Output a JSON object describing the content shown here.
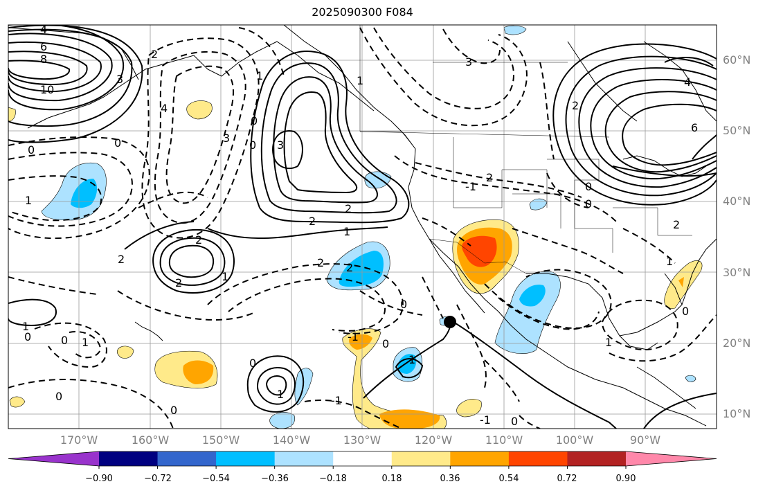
{
  "title": "2025090300 F084",
  "lat_labels": [
    "60°N",
    "50°N",
    "40°N",
    "30°N",
    "20°N",
    "10°N"
  ],
  "lon_labels": [
    "170°W",
    "160°W",
    "150°W",
    "140°W",
    "130°W",
    "120°W",
    "110°W",
    "100°W",
    "90°W"
  ],
  "colorbar": {
    "colors": [
      "#9933cc",
      "#000080",
      "#3366cc",
      "#00bfff",
      "#ade2ff",
      "#ffffff",
      "#ffea8a",
      "#ffa500",
      "#ff4500",
      "#b22222",
      "#ff88aa"
    ],
    "tick_labels": [
      "−0.90",
      "−0.72",
      "−0.54",
      "−0.36",
      "−0.18",
      "0.18",
      "0.36",
      "0.54",
      "0.72",
      "0.90"
    ]
  },
  "contour_labels": [
    "4",
    "6",
    "8",
    "10",
    "3",
    "2",
    "4",
    "0",
    "0",
    "3",
    "0",
    "3",
    "1",
    "0",
    "3",
    "2",
    "1",
    "-1",
    "0",
    "0",
    "4",
    "6",
    "1",
    "2",
    "2",
    "1",
    "2",
    "2",
    "2",
    "2",
    "1",
    "2",
    "2",
    "2",
    "1",
    "1",
    "0",
    "0",
    "0",
    "0",
    "1",
    "0",
    "-1",
    "-1",
    "0",
    "1",
    "1",
    "0",
    "0",
    "1",
    "-1",
    "0"
  ]
}
